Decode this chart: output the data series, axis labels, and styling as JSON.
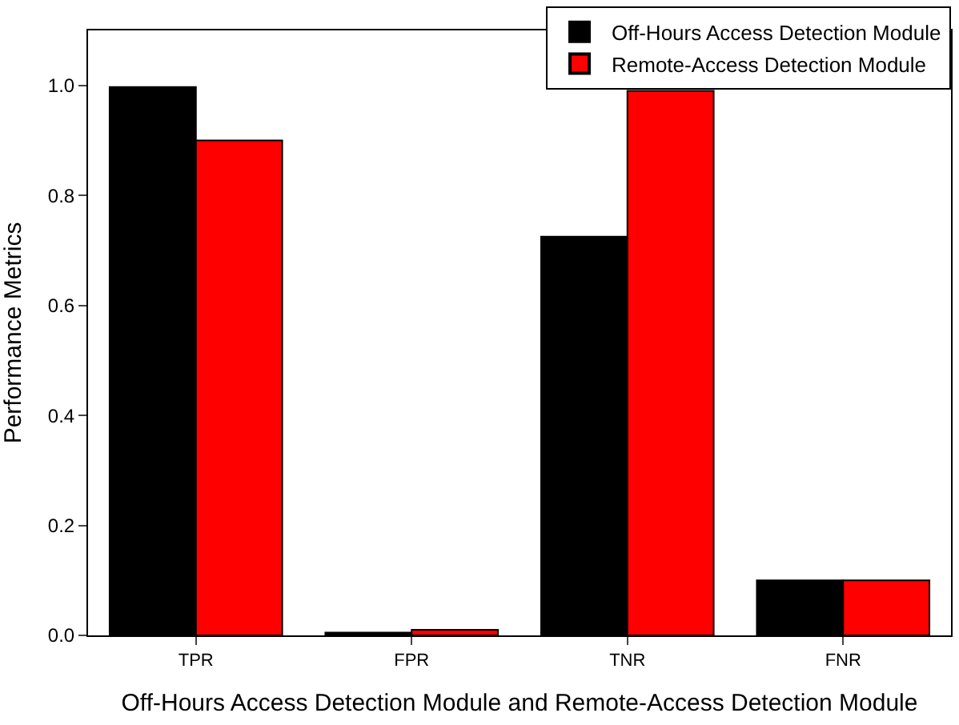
{
  "chart_data": {
    "type": "bar",
    "xlabel": "Off-Hours Access Detection Module and Remote-Access Detection Module",
    "ylabel": "Performance Metrics",
    "categories": [
      "TPR",
      "FPR",
      "TNR",
      "FNR"
    ],
    "series": [
      {
        "name": "Off-Hours Access Detection Module",
        "color": "#000000",
        "values": [
          0.997,
          0.005,
          0.725,
          0.1
        ]
      },
      {
        "name": "Remote-Access Detection Module",
        "color": "#ff0000",
        "values": [
          0.9,
          0.01,
          0.99,
          0.1
        ]
      }
    ],
    "ylim": [
      0,
      1.1
    ],
    "yticks": [
      {
        "value": 0,
        "label": "0.0"
      },
      {
        "value": 0.2,
        "label": "0.2"
      },
      {
        "value": 0.4,
        "label": "0.4"
      },
      {
        "value": 0.6,
        "label": "0.6"
      },
      {
        "value": 0.8,
        "label": "0.8"
      },
      {
        "value": 1.0,
        "label": "1.0"
      }
    ],
    "legend": "top right"
  }
}
